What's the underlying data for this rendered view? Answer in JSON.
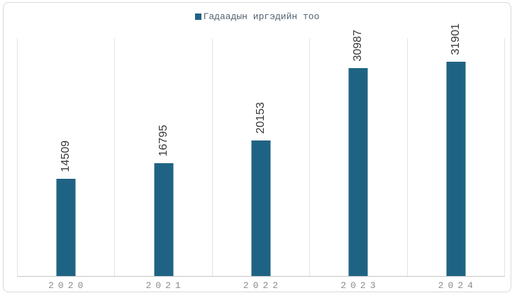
{
  "chart_data": {
    "type": "bar",
    "title": "",
    "categories": [
      "2020",
      "2021",
      "2022",
      "2023",
      "2024"
    ],
    "series": [
      {
        "name": "Гадаадын иргэдийн тоо",
        "values": [
          14509,
          16795,
          20153,
          30987,
          31901
        ]
      }
    ],
    "xlabel": "",
    "ylabel": "",
    "ylim": [
      0,
      35400
    ],
    "legend_position": "top-center",
    "grid": "vertical-category-boundaries-only",
    "y_axis_labels_visible": false,
    "data_labels": {
      "visible": true,
      "rotation_deg": -90,
      "position": "above-bar"
    }
  },
  "colors": {
    "bar": "#1F6384",
    "legend_text": "#53626F",
    "axis_label": "#8C8C8C",
    "data_label": "#383838",
    "gridline": "#E4E4E4",
    "axis_line": "#C8C8C8",
    "border": "#D9D9D9",
    "background": "#FFFFFF"
  }
}
